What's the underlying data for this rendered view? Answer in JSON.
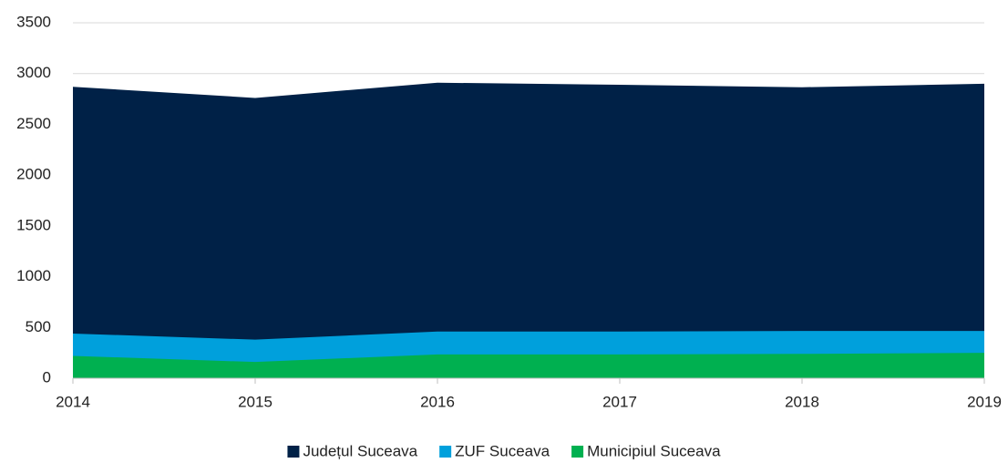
{
  "chart_data": {
    "type": "area",
    "x": [
      2014,
      2015,
      2016,
      2017,
      2018,
      2019
    ],
    "xlim": [
      2014,
      2019
    ],
    "xticks": [
      2014,
      2015,
      2016,
      2017,
      2018,
      2019
    ],
    "ylim": [
      0,
      3500
    ],
    "yticks": [
      0,
      500,
      1000,
      1500,
      2000,
      2500,
      3000,
      3500
    ],
    "grid": true,
    "legend": "bottom",
    "series": [
      {
        "name": "Județul Suceava",
        "color": "#002147",
        "values": [
          2870,
          2760,
          2910,
          2890,
          2865,
          2900
        ]
      },
      {
        "name": "ZUF Suceava",
        "color": "#00a0dc",
        "values": [
          440,
          380,
          460,
          460,
          465,
          465
        ]
      },
      {
        "name": "Municipiul Suceava",
        "color": "#00b050",
        "values": [
          220,
          160,
          235,
          235,
          240,
          250
        ]
      }
    ]
  }
}
